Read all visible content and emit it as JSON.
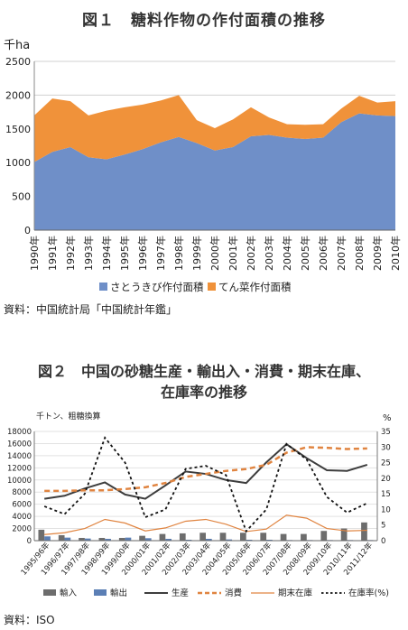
{
  "figure1": {
    "title": "図１　糖料作物の作付面積の推移",
    "source": "資料：中国統計局「中国統計年鑑」",
    "chart_data": {
      "type": "area",
      "stacked": true,
      "unit": "千ha",
      "categories": [
        "1990年",
        "1991年",
        "1992年",
        "1993年",
        "1994年",
        "1995年",
        "1996年",
        "1997年",
        "1998年",
        "1999年",
        "2000年",
        "2001年",
        "2002年",
        "2003年",
        "2004年",
        "2005年",
        "2006年",
        "2007年",
        "2008年",
        "2009年",
        "2010年"
      ],
      "series": [
        {
          "name": "さとうきび作付面積",
          "color": "#6f8fc8",
          "values": [
            1010,
            1160,
            1230,
            1080,
            1050,
            1120,
            1200,
            1300,
            1380,
            1290,
            1180,
            1230,
            1390,
            1410,
            1370,
            1350,
            1370,
            1600,
            1730,
            1700,
            1690
          ]
        },
        {
          "name": "てん菜作付面積",
          "color": "#f0923a",
          "values": [
            690,
            790,
            680,
            620,
            720,
            700,
            660,
            620,
            620,
            340,
            330,
            410,
            430,
            260,
            200,
            210,
            200,
            200,
            260,
            190,
            220
          ]
        }
      ],
      "ylim": [
        0,
        2500
      ],
      "yticks": [
        0,
        500,
        1000,
        1500,
        2000,
        2500
      ],
      "grid": true,
      "legend": "bottom"
    }
  },
  "figure2": {
    "title_line1": "図２　中国の砂糖生産・輸出入・消費・期末在庫、",
    "title_line2": "在庫率の推移",
    "source": "資料：ISO",
    "chart_data": {
      "type": "bar-line-combo",
      "left_axis_label": "千トン、粗糖換算",
      "right_axis_label": "%",
      "categories": [
        "1995/96年",
        "1996/97年",
        "1997/98年",
        "1998/99年",
        "1999/00年",
        "2000/01年",
        "2001/02年",
        "2002/03年",
        "2003/04年",
        "2004/05年",
        "2005/06年",
        "2006/07年",
        "2007/08年",
        "2008/09年",
        "2009/10年",
        "2010/11年",
        "2011/12年"
      ],
      "bars": [
        {
          "name": "輸入",
          "color": "#6d6d6d",
          "values": [
            1800,
            900,
            450,
            450,
            450,
            800,
            1100,
            1200,
            1300,
            1300,
            1300,
            1300,
            1100,
            1100,
            1600,
            2000,
            3000
          ]
        },
        {
          "name": "輸出",
          "color": "#5b7fb5",
          "values": [
            700,
            500,
            350,
            300,
            500,
            400,
            300,
            150,
            300,
            200,
            150,
            150,
            100,
            100,
            100,
            100,
            100
          ]
        }
      ],
      "lines": [
        {
          "name": "生産",
          "color": "#3d3d3d",
          "axis": "left",
          "style": "solid",
          "values": [
            6900,
            7400,
            8600,
            9600,
            7600,
            6900,
            9100,
            11400,
            11000,
            10000,
            9500,
            12900,
            15900,
            13600,
            11600,
            11500,
            12500
          ]
        },
        {
          "name": "消費",
          "color": "#e08440",
          "axis": "left",
          "style": "dashed",
          "values": [
            8200,
            8200,
            8300,
            8300,
            8500,
            8800,
            9500,
            10500,
            11000,
            11500,
            11800,
            12500,
            14500,
            15400,
            15300,
            15100,
            15200
          ]
        },
        {
          "name": "期末在庫",
          "color": "#e08440",
          "axis": "left",
          "style": "thin",
          "values": [
            1000,
            1300,
            2000,
            3500,
            2900,
            1600,
            2100,
            3200,
            3500,
            2700,
            1500,
            1900,
            4200,
            3700,
            2000,
            1600,
            1700
          ]
        },
        {
          "name": "在庫率(%)",
          "color": "#111111",
          "axis": "right",
          "style": "dotted",
          "values": [
            11,
            8.5,
            15,
            33,
            25,
            7.5,
            10,
            23,
            24,
            21,
            3,
            10,
            31,
            26,
            14,
            9,
            12
          ]
        }
      ],
      "left_ylim": [
        0,
        18000
      ],
      "left_yticks": [
        0,
        2000,
        4000,
        6000,
        8000,
        10000,
        12000,
        14000,
        16000,
        18000
      ],
      "right_ylim": [
        0,
        35
      ],
      "right_yticks": [
        0,
        5,
        10,
        15,
        20,
        25,
        30,
        35
      ],
      "legend": "bottom"
    }
  }
}
